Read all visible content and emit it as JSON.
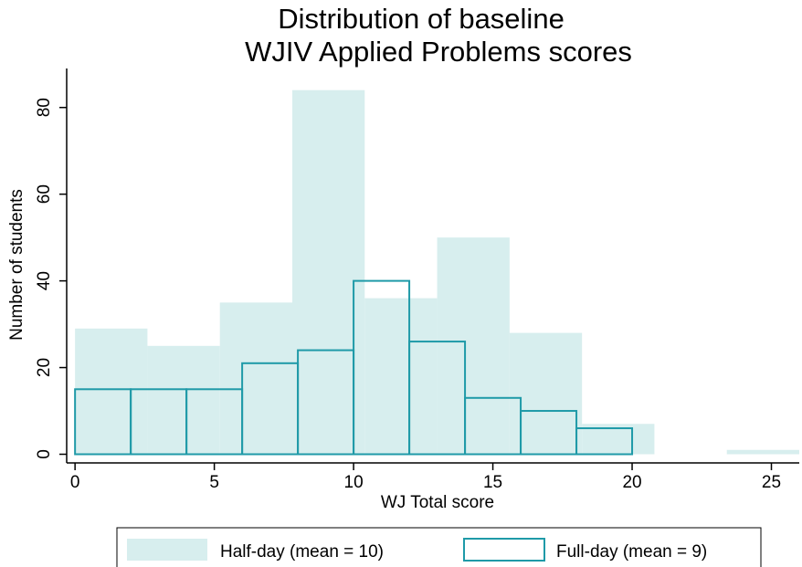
{
  "chart_data": {
    "type": "bar",
    "title": [
      "Distribution of baseline",
      "WJIV Applied Problems scores"
    ],
    "xlabel": "WJ Total score",
    "ylabel": "Number of students",
    "xlim": [
      -0.3,
      26
    ],
    "ylim": [
      -2,
      89
    ],
    "xticks": [
      0,
      5,
      10,
      15,
      20,
      25
    ],
    "yticks": [
      0,
      20,
      40,
      60,
      80
    ],
    "grid": false,
    "legend_position": "bottom",
    "series": [
      {
        "name": "Half-day (mean = 10)",
        "style": "filled",
        "bins": [
          {
            "x0": 0,
            "x1": 2.6,
            "value": 29
          },
          {
            "x0": 2.6,
            "x1": 5.2,
            "value": 25
          },
          {
            "x0": 5.2,
            "x1": 7.8,
            "value": 35
          },
          {
            "x0": 7.8,
            "x1": 10.4,
            "value": 84
          },
          {
            "x0": 10.4,
            "x1": 13,
            "value": 36
          },
          {
            "x0": 13,
            "x1": 15.6,
            "value": 50
          },
          {
            "x0": 15.6,
            "x1": 18.2,
            "value": 28
          },
          {
            "x0": 18.2,
            "x1": 20.8,
            "value": 7
          },
          {
            "x0": 20.8,
            "x1": 23.4,
            "value": 0
          },
          {
            "x0": 23.4,
            "x1": 26,
            "value": 1
          }
        ]
      },
      {
        "name": "Full-day (mean = 9)",
        "style": "outline",
        "bins": [
          {
            "x0": 0,
            "x1": 2,
            "value": 15
          },
          {
            "x0": 2,
            "x1": 4,
            "value": 15
          },
          {
            "x0": 4,
            "x1": 6,
            "value": 15
          },
          {
            "x0": 6,
            "x1": 8,
            "value": 21
          },
          {
            "x0": 8,
            "x1": 10,
            "value": 24
          },
          {
            "x0": 10,
            "x1": 12,
            "value": 40
          },
          {
            "x0": 12,
            "x1": 14,
            "value": 26
          },
          {
            "x0": 14,
            "x1": 16,
            "value": 13
          },
          {
            "x0": 16,
            "x1": 18,
            "value": 10
          },
          {
            "x0": 18,
            "x1": 20,
            "value": 6
          }
        ]
      }
    ]
  },
  "colors": {
    "half_day_fill": "#d7eeee",
    "full_day_outline": "#1f9aa8",
    "axis": "#000000"
  }
}
